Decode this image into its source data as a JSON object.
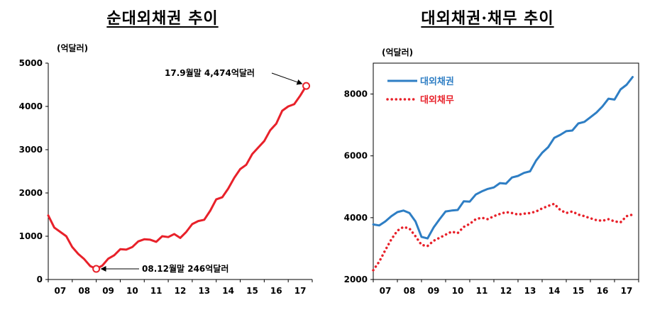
{
  "chart_data": [
    {
      "type": "line",
      "title": "순대외채권 추이",
      "unit_label": "(억달러)",
      "x_tick_labels": [
        "07",
        "08",
        "09",
        "10",
        "11",
        "12",
        "13",
        "14",
        "15",
        "16",
        "17"
      ],
      "xlim": [
        2007.0,
        2018.0
      ],
      "ylim": [
        0,
        5000
      ],
      "y_ticks": [
        0,
        1000,
        2000,
        3000,
        4000,
        5000
      ],
      "grid": false,
      "series": [
        {
          "name": "",
          "color": "#e8212a",
          "style": "solid",
          "x": [
            2007.0,
            2007.25,
            2007.5,
            2007.75,
            2008.0,
            2008.25,
            2008.5,
            2008.75,
            2009.0,
            2009.25,
            2009.5,
            2009.75,
            2010.0,
            2010.25,
            2010.5,
            2010.75,
            2011.0,
            2011.25,
            2011.5,
            2011.75,
            2012.0,
            2012.25,
            2012.5,
            2012.75,
            2013.0,
            2013.25,
            2013.5,
            2013.75,
            2014.0,
            2014.25,
            2014.5,
            2014.75,
            2015.0,
            2015.25,
            2015.5,
            2015.75,
            2016.0,
            2016.25,
            2016.5,
            2016.75,
            2017.0,
            2017.25,
            2017.5,
            2017.75
          ],
          "values": [
            1480,
            1200,
            1100,
            1000,
            750,
            590,
            470,
            310,
            246,
            320,
            480,
            560,
            700,
            690,
            750,
            880,
            930,
            920,
            870,
            1000,
            980,
            1050,
            960,
            1100,
            1280,
            1350,
            1380,
            1590,
            1850,
            1900,
            2100,
            2350,
            2550,
            2650,
            2900,
            3050,
            3200,
            3450,
            3600,
            3900,
            4000,
            4050,
            4250,
            4474
          ]
        }
      ],
      "annotations": [
        {
          "text": "17.9월말 4,474억달러",
          "x": 2017.75,
          "y": 4474
        },
        {
          "text": "08.12월말 246억달러",
          "x": 2009.0,
          "y": 246
        }
      ]
    },
    {
      "type": "line",
      "title": "대외채권·채무 추이",
      "unit_label": "(억달러)",
      "x_tick_labels": [
        "07",
        "08",
        "09",
        "10",
        "11",
        "12",
        "13",
        "14",
        "15",
        "16",
        "17"
      ],
      "xlim": [
        2007.0,
        2018.0
      ],
      "ylim": [
        2000,
        9000
      ],
      "y_ticks": [
        2000,
        4000,
        6000,
        8000
      ],
      "grid": false,
      "legend_position": "top-left",
      "series": [
        {
          "name": "대외채권",
          "color": "#2e7ec4",
          "style": "solid",
          "x": [
            2007.0,
            2007.25,
            2007.5,
            2007.75,
            2008.0,
            2008.25,
            2008.5,
            2008.75,
            2009.0,
            2009.25,
            2009.5,
            2009.75,
            2010.0,
            2010.25,
            2010.5,
            2010.75,
            2011.0,
            2011.25,
            2011.5,
            2011.75,
            2012.0,
            2012.25,
            2012.5,
            2012.75,
            2013.0,
            2013.25,
            2013.5,
            2013.75,
            2014.0,
            2014.25,
            2014.5,
            2014.75,
            2015.0,
            2015.25,
            2015.5,
            2015.75,
            2016.0,
            2016.25,
            2016.5,
            2016.75,
            2017.0,
            2017.25,
            2017.5,
            2017.75
          ],
          "values": [
            3780,
            3750,
            3880,
            4050,
            4180,
            4230,
            4150,
            3880,
            3380,
            3330,
            3680,
            3950,
            4200,
            4230,
            4250,
            4530,
            4520,
            4750,
            4850,
            4930,
            4980,
            5120,
            5100,
            5300,
            5350,
            5450,
            5500,
            5850,
            6100,
            6280,
            6580,
            6680,
            6800,
            6820,
            7050,
            7100,
            7250,
            7400,
            7600,
            7850,
            7820,
            8150,
            8300,
            8550
          ]
        },
        {
          "name": "대외채무",
          "color": "#e8212a",
          "style": "dotted",
          "x": [
            2007.0,
            2007.25,
            2007.5,
            2007.75,
            2008.0,
            2008.25,
            2008.5,
            2008.75,
            2009.0,
            2009.25,
            2009.5,
            2009.75,
            2010.0,
            2010.25,
            2010.5,
            2010.75,
            2011.0,
            2011.25,
            2011.5,
            2011.75,
            2012.0,
            2012.25,
            2012.5,
            2012.75,
            2013.0,
            2013.25,
            2013.5,
            2013.75,
            2014.0,
            2014.25,
            2014.5,
            2014.75,
            2015.0,
            2015.25,
            2015.5,
            2015.75,
            2016.0,
            2016.25,
            2016.5,
            2016.75,
            2017.0,
            2017.25,
            2017.5,
            2017.75
          ],
          "values": [
            2300,
            2580,
            2950,
            3300,
            3580,
            3700,
            3650,
            3400,
            3120,
            3080,
            3250,
            3350,
            3450,
            3550,
            3500,
            3700,
            3800,
            3950,
            4000,
            3950,
            4050,
            4120,
            4180,
            4150,
            4100,
            4130,
            4150,
            4200,
            4300,
            4380,
            4450,
            4250,
            4150,
            4200,
            4100,
            4050,
            3980,
            3920,
            3900,
            3950,
            3880,
            3850,
            4050,
            4100
          ]
        }
      ]
    }
  ]
}
